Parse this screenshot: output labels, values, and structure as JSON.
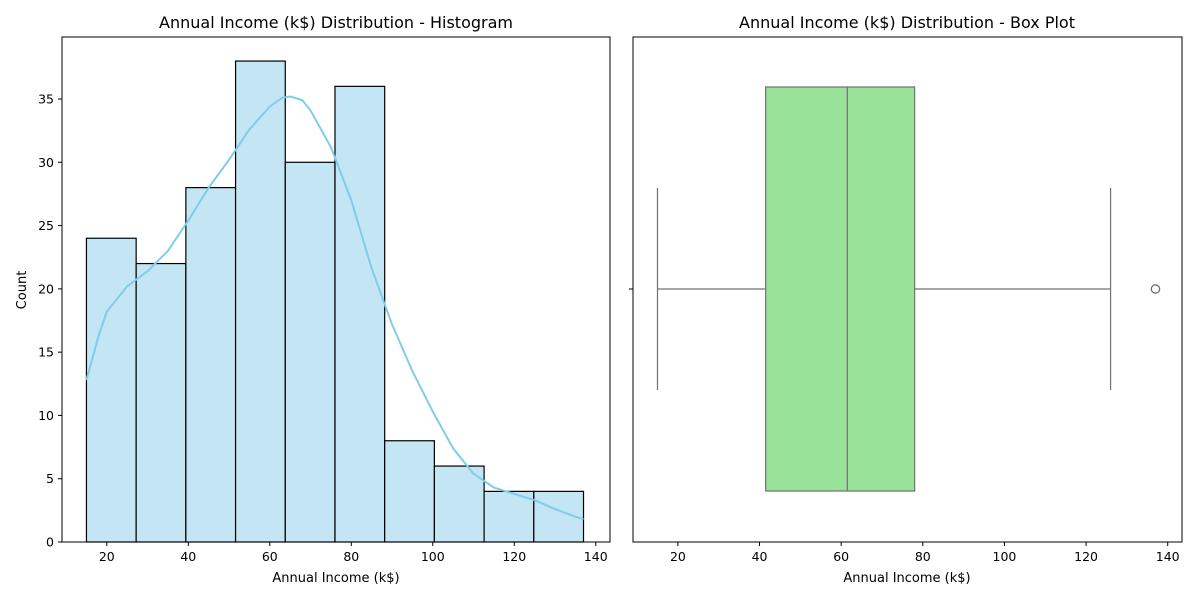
{
  "chart_data": [
    {
      "type": "bar",
      "subtype": "histogram_with_kde",
      "title": "Annual Income (k$) Distribution - Histogram",
      "xlabel": "Annual Income (k$)",
      "ylabel": "Count",
      "xlim": [
        9,
        143.5
      ],
      "ylim": [
        0,
        39.9
      ],
      "xticks": [
        20,
        40,
        60,
        80,
        100,
        120,
        140
      ],
      "yticks": [
        0,
        5,
        10,
        15,
        20,
        25,
        30,
        35
      ],
      "bins": [
        {
          "x0": 15.0,
          "x1": 27.2,
          "count": 24
        },
        {
          "x0": 27.2,
          "x1": 39.4,
          "count": 22
        },
        {
          "x0": 39.4,
          "x1": 51.6,
          "count": 28
        },
        {
          "x0": 51.6,
          "x1": 63.8,
          "count": 38
        },
        {
          "x0": 63.8,
          "x1": 76.0,
          "count": 30
        },
        {
          "x0": 76.0,
          "x1": 88.2,
          "count": 36
        },
        {
          "x0": 88.2,
          "x1": 100.4,
          "count": 8
        },
        {
          "x0": 100.4,
          "x1": 112.6,
          "count": 6
        },
        {
          "x0": 112.6,
          "x1": 124.8,
          "count": 4
        },
        {
          "x0": 124.8,
          "x1": 137.0,
          "count": 4
        }
      ],
      "kde": {
        "x": [
          15,
          18,
          20,
          25,
          30,
          35,
          40,
          45,
          50,
          55,
          60,
          63,
          65,
          68,
          70,
          75,
          80,
          85,
          90,
          95,
          100,
          105,
          110,
          115,
          120,
          125,
          130,
          135,
          137
        ],
        "y": [
          12.8,
          16.3,
          18.2,
          20.2,
          21.4,
          23.0,
          25.4,
          28.0,
          30.2,
          32.6,
          34.4,
          35.1,
          35.2,
          34.9,
          34.1,
          31.2,
          27.0,
          21.6,
          17.2,
          13.5,
          10.3,
          7.4,
          5.4,
          4.3,
          3.8,
          3.3,
          2.6,
          2.0,
          1.8
        ]
      },
      "colors": {
        "bar_fill": "#c3e5f4",
        "bar_edge": "#000000",
        "kde_line": "#7fcdea"
      },
      "grid": false
    },
    {
      "type": "box",
      "title": "Annual Income (k$) Distribution - Box Plot",
      "xlabel": "Annual Income (k$)",
      "xlim": [
        9,
        143.5
      ],
      "xticks": [
        20,
        40,
        60,
        80,
        100,
        120,
        140
      ],
      "stats": {
        "whisker_low": 15,
        "q1": 41.5,
        "median": 61.5,
        "q3": 78,
        "whisker_high": 126,
        "outliers": [
          137
        ]
      },
      "colors": {
        "box_fill": "#98e299",
        "line": "#707070"
      },
      "grid": false
    }
  ]
}
